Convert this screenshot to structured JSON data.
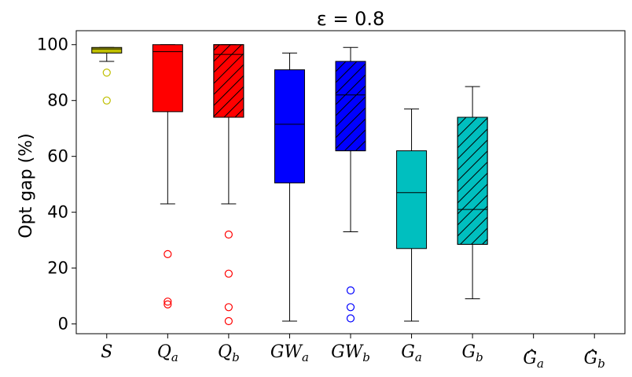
{
  "chart_data": {
    "type": "box",
    "title": "ε = 0.8",
    "xlabel": "",
    "ylabel": "Opt gap (%)",
    "ylim": [
      -3.5,
      105
    ],
    "yticks": [
      0,
      20,
      40,
      60,
      80,
      100
    ],
    "grid": false,
    "categories": [
      {
        "main": "S",
        "sub": "",
        "hat": false
      },
      {
        "main": "Q",
        "sub": "a",
        "hat": false
      },
      {
        "main": "Q",
        "sub": "b",
        "hat": false
      },
      {
        "main": "GW",
        "sub": "a",
        "hat": false
      },
      {
        "main": "GW",
        "sub": "b",
        "hat": false
      },
      {
        "main": "G",
        "sub": "a",
        "hat": false
      },
      {
        "main": "G",
        "sub": "b",
        "hat": false
      },
      {
        "main": "G",
        "sub": "a",
        "hat": true
      },
      {
        "main": "G",
        "sub": "b",
        "hat": true
      }
    ],
    "boxes": [
      {
        "whisker_low": 94,
        "q1": 97,
        "median": 98.5,
        "q3": 99,
        "whisker_high": 99,
        "outliers": [
          90,
          80
        ],
        "color": "#bfbf00",
        "hatched": false
      },
      {
        "whisker_low": 43,
        "q1": 76,
        "median": 97.5,
        "q3": 100,
        "whisker_high": 100,
        "outliers": [
          25,
          8,
          7
        ],
        "color": "#ff0000",
        "hatched": false
      },
      {
        "whisker_low": 43,
        "q1": 74,
        "median": 96.5,
        "q3": 100,
        "whisker_high": 100,
        "outliers": [
          32,
          18,
          6,
          1
        ],
        "color": "#ff0000",
        "hatched": true
      },
      {
        "whisker_low": 1,
        "q1": 50.5,
        "median": 71.5,
        "q3": 91,
        "whisker_high": 97,
        "outliers": [],
        "color": "#0000ff",
        "hatched": false
      },
      {
        "whisker_low": 33,
        "q1": 62,
        "median": 82,
        "q3": 94,
        "whisker_high": 99,
        "outliers": [
          12,
          6,
          2
        ],
        "color": "#0000ff",
        "hatched": true
      },
      {
        "whisker_low": 1,
        "q1": 27,
        "median": 47,
        "q3": 62,
        "whisker_high": 77,
        "outliers": [],
        "color": "#00bfbf",
        "hatched": false
      },
      {
        "whisker_low": 9,
        "q1": 28.5,
        "median": 41,
        "q3": 74,
        "whisker_high": 85,
        "outliers": [],
        "color": "#00bfbf",
        "hatched": true
      },
      null,
      null
    ]
  }
}
